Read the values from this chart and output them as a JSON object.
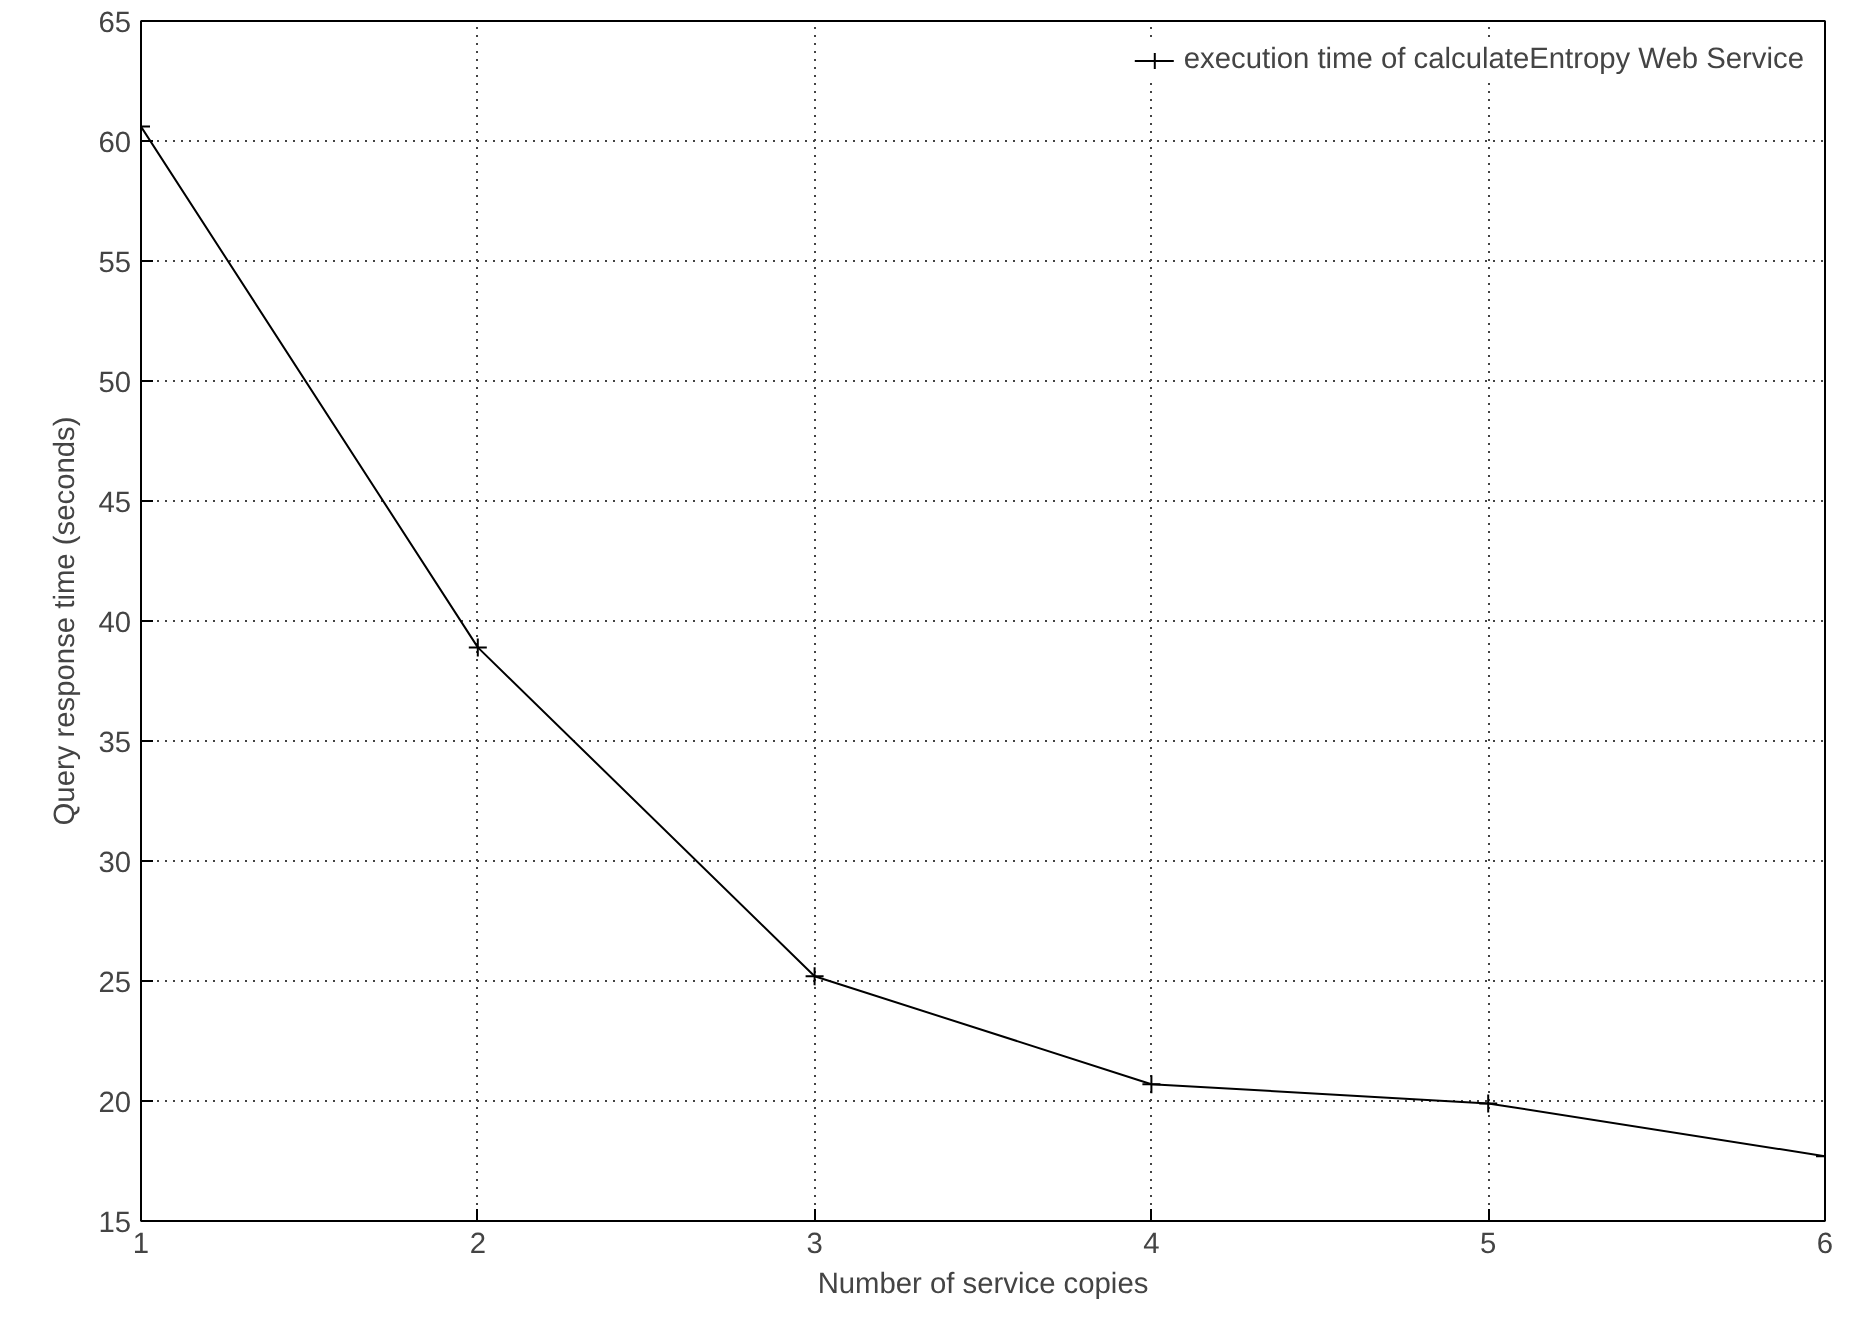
{
  "chart_data": {
    "type": "line",
    "xlabel": "Number of service copies",
    "ylabel": "Query response time (seconds)",
    "x": [
      1,
      2,
      3,
      4,
      5,
      6
    ],
    "series": [
      {
        "name": "execution time of calculateEntropy Web Service",
        "color": "#000000",
        "values": [
          60.6,
          38.9,
          25.2,
          20.7,
          19.9,
          17.7
        ]
      }
    ],
    "xlim": [
      1,
      6
    ],
    "ylim": [
      15,
      65
    ],
    "xticks": [
      1,
      2,
      3,
      4,
      5,
      6
    ],
    "yticks": [
      15,
      20,
      25,
      30,
      35,
      40,
      45,
      50,
      55,
      60,
      65
    ],
    "grid": true,
    "legend": "top right",
    "marker": "cross",
    "line_style": "solid"
  }
}
